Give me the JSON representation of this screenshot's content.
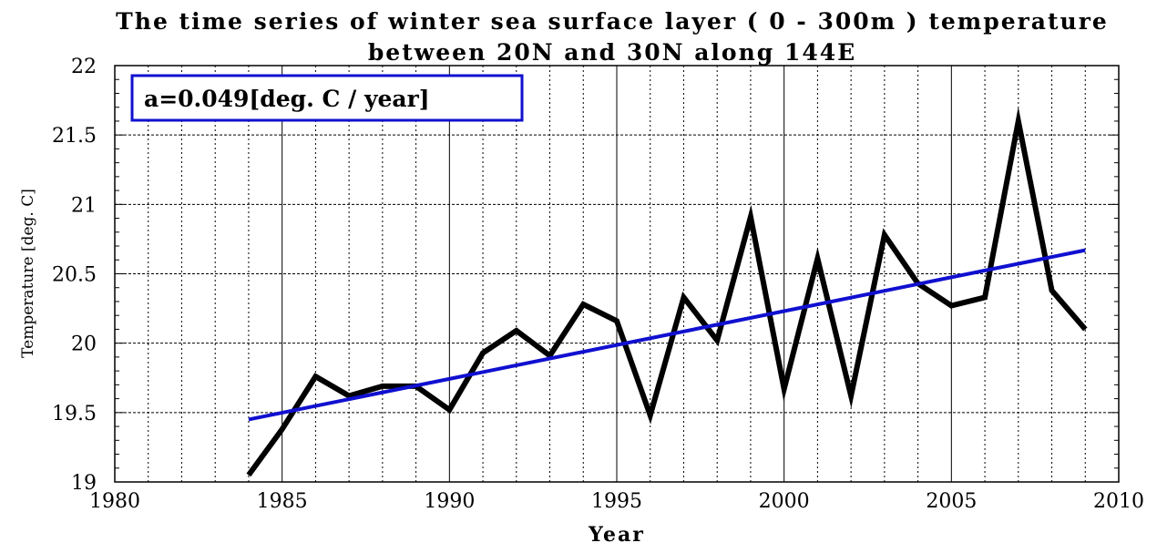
{
  "chart_data": {
    "type": "line",
    "title_line1": "The time series of winter sea surface layer ( 0 - 300m ) temperature",
    "title_line2": "between 20N and 30N along 144E",
    "xlabel": "Year",
    "ylabel": "Temperature [deg. C]",
    "xlim": [
      1980,
      2010
    ],
    "ylim": [
      19,
      22
    ],
    "x_ticks": [
      1980,
      1985,
      1990,
      1995,
      2000,
      2005,
      2010
    ],
    "y_ticks": [
      "19",
      "19.5",
      "20",
      "20.5",
      "21",
      "21.5",
      "22"
    ],
    "grid": true,
    "annotation": "a=0.049[deg. C / year]",
    "colors": {
      "series": "#000000",
      "trend": "#1010d0",
      "annotation_border": "#1010d0"
    },
    "series": [
      {
        "x": [
          1984,
          1985,
          1986,
          1987,
          1988,
          1989,
          1990,
          1991,
          1992,
          1993,
          1994,
          1995,
          1996,
          1997,
          1998,
          1999,
          2000,
          2001,
          2002,
          2003,
          2004,
          2005,
          2006,
          2007,
          2008,
          2009
        ],
        "values": [
          19.05,
          19.38,
          19.76,
          19.62,
          19.69,
          19.69,
          19.52,
          19.93,
          20.09,
          19.91,
          20.28,
          20.16,
          19.48,
          20.33,
          20.02,
          20.91,
          19.67,
          20.61,
          19.62,
          20.78,
          20.43,
          20.27,
          20.33,
          21.6,
          20.38,
          20.1
        ]
      },
      {
        "x": [
          1984,
          2009
        ],
        "values": [
          19.45,
          20.67
        ]
      }
    ]
  }
}
